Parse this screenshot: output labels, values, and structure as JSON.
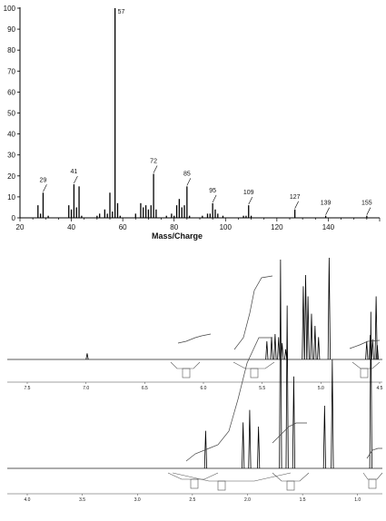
{
  "chart_data": [
    {
      "type": "bar",
      "xlabel": "Mass/Charge",
      "ylabel": "",
      "xlim": [
        20,
        160
      ],
      "ylim": [
        0,
        100
      ],
      "x_ticks": [
        20,
        40,
        60,
        80,
        100,
        120,
        140
      ],
      "y_ticks": [
        0,
        10,
        20,
        30,
        40,
        50,
        60,
        70,
        80,
        90,
        100
      ],
      "grid": false,
      "labeled_peaks": [
        29,
        41,
        57,
        72,
        85,
        95,
        109,
        127,
        139,
        155
      ],
      "x": [
        27,
        28,
        29,
        31,
        39,
        40,
        41,
        42,
        43,
        44,
        50,
        51,
        53,
        54,
        55,
        56,
        57,
        58,
        59,
        65,
        67,
        68,
        69,
        70,
        71,
        72,
        73,
        77,
        79,
        80,
        81,
        82,
        83,
        84,
        85,
        86,
        91,
        93,
        94,
        95,
        96,
        97,
        99,
        107,
        108,
        109,
        110,
        127,
        139,
        155
      ],
      "values": [
        6,
        2,
        12,
        1,
        6,
        4,
        16,
        5,
        15,
        1,
        1,
        2,
        4,
        2,
        12,
        3,
        100,
        7,
        1,
        2,
        7,
        5,
        6,
        4,
        6,
        21,
        4,
        1,
        2,
        1,
        6,
        9,
        5,
        6,
        15,
        1,
        1,
        2,
        2,
        7,
        4,
        2,
        1,
        1,
        1,
        6,
        1,
        4,
        1,
        1
      ]
    },
    {
      "type": "line",
      "title": "",
      "x_direction": "descending",
      "xlim": [
        4.5,
        7.5
      ],
      "x_ticks": [
        "7.5",
        "7.0",
        "6.5",
        "6.0",
        "5.5",
        "5.0",
        "4.5"
      ],
      "peaks": [
        {
          "ppm": 6.99,
          "intensity": 0.06
        },
        {
          "ppm": 5.46,
          "intensity": 0.18
        },
        {
          "ppm": 5.42,
          "intensity": 0.22
        },
        {
          "ppm": 5.39,
          "intensity": 0.25
        },
        {
          "ppm": 5.36,
          "intensity": 0.22
        },
        {
          "ppm": 5.33,
          "intensity": 0.16
        },
        {
          "ppm": 5.3,
          "intensity": 0.1
        },
        {
          "ppm": 5.15,
          "intensity": 0.72
        },
        {
          "ppm": 5.13,
          "intensity": 0.83
        },
        {
          "ppm": 5.11,
          "intensity": 0.62
        },
        {
          "ppm": 5.08,
          "intensity": 0.45
        },
        {
          "ppm": 5.05,
          "intensity": 0.33
        },
        {
          "ppm": 5.02,
          "intensity": 0.22
        },
        {
          "ppm": 4.93,
          "intensity": 1.0
        },
        {
          "ppm": 4.61,
          "intensity": 0.18
        },
        {
          "ppm": 4.58,
          "intensity": 0.24
        },
        {
          "ppm": 4.56,
          "intensity": 0.2
        },
        {
          "ppm": 4.53,
          "intensity": 0.62
        },
        {
          "ppm": 4.52,
          "intensity": 0.14
        }
      ]
    },
    {
      "type": "line",
      "title": "",
      "x_direction": "descending",
      "xlim": [
        0.8,
        4.0
      ],
      "x_ticks": [
        "4.0",
        "3.5",
        "3.0",
        "2.5",
        "2.0",
        "1.5",
        "1.0"
      ],
      "peaks": [
        {
          "ppm": 2.38,
          "intensity": 0.18
        },
        {
          "ppm": 2.04,
          "intensity": 0.22
        },
        {
          "ppm": 1.98,
          "intensity": 0.28
        },
        {
          "ppm": 1.9,
          "intensity": 0.2
        },
        {
          "ppm": 1.7,
          "intensity": 1.0
        },
        {
          "ppm": 1.64,
          "intensity": 0.78
        },
        {
          "ppm": 1.58,
          "intensity": 0.44
        },
        {
          "ppm": 1.3,
          "intensity": 0.3
        },
        {
          "ppm": 1.23,
          "intensity": 0.52
        },
        {
          "ppm": 0.88,
          "intensity": 0.75
        }
      ]
    }
  ]
}
